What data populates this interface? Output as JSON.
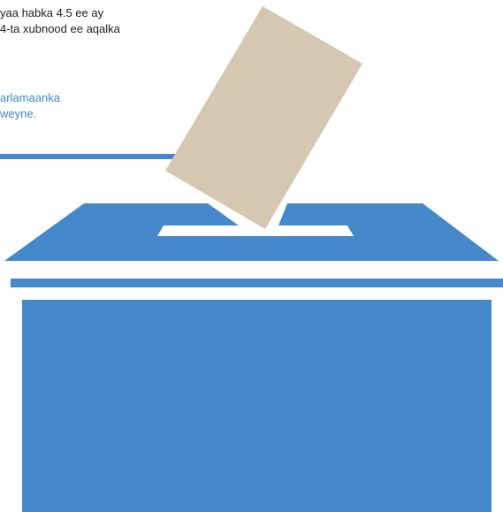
{
  "text": {
    "line1": "yaa habka 4.5 ee ay",
    "line2": "4-ta xubnood ee aqalka",
    "line3": "arlamaanka",
    "line4": "weyne."
  },
  "colors": {
    "box_blue": "#4489c9",
    "ballot_paper": "#d6c8b0",
    "highlight_text": "#3f86c6",
    "body_text": "#1f1f1f"
  }
}
